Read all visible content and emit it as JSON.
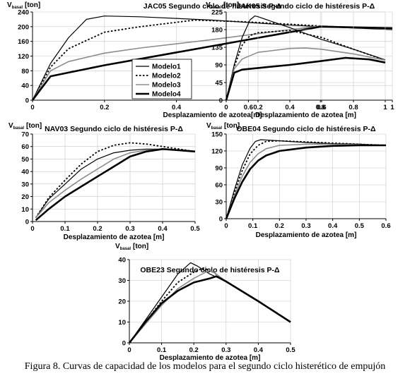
{
  "caption": "Figura 8. Curvas de capacidad de los modelos para el segundo ciclo histerético de empujón",
  "legend": [
    "Modelo1",
    "Modelo2",
    "Modelo3",
    "Modelo4"
  ],
  "chart_data": [
    {
      "type": "line",
      "title": "JAC05 Segundo ciclo de histéresis P-Δ",
      "ylabel_main": "V",
      "ylabel_sub": "basal",
      "ylabel_unit": "[ton]",
      "xlabel": "Desplazamiento de azotea[m]",
      "xlim": [
        0,
        1
      ],
      "ylim": [
        0,
        240
      ],
      "xticks": [
        0,
        0.2,
        0.4,
        0.6,
        0.8,
        1
      ],
      "xtick_labels": [
        "0",
        "0.2",
        "0.4",
        "0.6",
        "0.8",
        "1"
      ],
      "yticks": [
        0,
        40,
        80,
        120,
        160,
        200,
        240
      ],
      "ytick_labels": [
        "0",
        "40",
        "80",
        "120",
        "160",
        "200",
        "240"
      ],
      "legend_position": "bottom-right",
      "series": [
        {
          "name": "Modelo1",
          "x": [
            0,
            0.05,
            0.1,
            0.15,
            0.2,
            0.3,
            0.5,
            0.7,
            0.8,
            1.0
          ],
          "y": [
            0,
            100,
            170,
            220,
            229,
            227,
            218,
            205,
            200,
            192
          ]
        },
        {
          "name": "Modelo2",
          "x": [
            0,
            0.05,
            0.1,
            0.2,
            0.3,
            0.45,
            0.6,
            0.8,
            1.0
          ],
          "y": [
            0,
            90,
            140,
            185,
            200,
            218,
            213,
            202,
            193
          ]
        },
        {
          "name": "Modelo3",
          "x": [
            0,
            0.05,
            0.1,
            0.2,
            0.3,
            0.5,
            0.7,
            0.8,
            1.0
          ],
          "y": [
            0,
            80,
            105,
            128,
            142,
            165,
            190,
            202,
            194
          ]
        },
        {
          "name": "Modelo4",
          "x": [
            0,
            0.05,
            0.1,
            0.2,
            0.4,
            0.6,
            0.8,
            1.0
          ],
          "y": [
            0,
            65,
            75,
            95,
            130,
            165,
            200,
            196
          ]
        }
      ]
    },
    {
      "type": "line",
      "title": "JAK05 Segundo ciclo de histéresis P-Δ",
      "ylabel_main": "V",
      "ylabel_sub": "basal",
      "ylabel_unit": "[ton]",
      "xlabel": "Desplazamiento de azotea [m]",
      "xlim": [
        0,
        1
      ],
      "ylim": [
        0,
        225
      ],
      "xticks": [
        0,
        0.2,
        0.4,
        0.6,
        0.8,
        1
      ],
      "xtick_labels": [
        "0",
        "0.2",
        "0.4",
        "0.6",
        "0.8",
        "1"
      ],
      "yticks": [
        0,
        45,
        90,
        135,
        180,
        225
      ],
      "ytick_labels": [
        "0",
        "45",
        "90",
        "135",
        "180",
        "225"
      ],
      "series": [
        {
          "name": "Modelo1",
          "x": [
            0,
            0.05,
            0.1,
            0.15,
            0.18,
            0.2,
            0.4,
            0.6,
            0.8,
            1.0
          ],
          "y": [
            0,
            90,
            160,
            205,
            215,
            213,
            185,
            155,
            130,
            103
          ]
        },
        {
          "name": "Modelo2",
          "x": [
            0,
            0.05,
            0.1,
            0.15,
            0.2,
            0.4,
            0.6,
            0.8,
            1.0
          ],
          "y": [
            0,
            85,
            140,
            165,
            172,
            178,
            160,
            130,
            102
          ]
        },
        {
          "name": "Modelo3",
          "x": [
            0,
            0.05,
            0.1,
            0.2,
            0.4,
            0.5,
            0.6,
            0.8,
            1.0
          ],
          "y": [
            0,
            80,
            105,
            122,
            132,
            133,
            130,
            118,
            102
          ]
        },
        {
          "name": "Modelo4",
          "x": [
            0,
            0.05,
            0.1,
            0.2,
            0.4,
            0.6,
            0.75,
            0.9,
            1.0
          ],
          "y": [
            0,
            70,
            78,
            82,
            90,
            100,
            108,
            104,
            96
          ]
        }
      ]
    },
    {
      "type": "line",
      "title": "NAV03 Segundo ciclo de histéresis P-Δ",
      "ylabel_main": "V",
      "ylabel_sub": "basal",
      "ylabel_unit": "[ton]",
      "xlabel": "Desplazamiento de azotea [m]",
      "xlim": [
        0,
        0.5
      ],
      "ylim": [
        0,
        70
      ],
      "xticks": [
        0,
        0.1,
        0.2,
        0.3,
        0.4,
        0.5
      ],
      "xtick_labels": [
        "0",
        "0.1",
        "0.2",
        "0.3",
        "0.4",
        "0.5"
      ],
      "yticks": [
        0,
        10,
        20,
        30,
        40,
        50,
        60,
        70
      ],
      "ytick_labels": [
        "0",
        "10",
        "20",
        "30",
        "40",
        "50",
        "60",
        "70"
      ],
      "series": [
        {
          "name": "Modelo1",
          "x": [
            0.01,
            0.05,
            0.1,
            0.15,
            0.2,
            0.25,
            0.3,
            0.35,
            0.4,
            0.45,
            0.5
          ],
          "y": [
            3,
            18,
            30,
            42,
            50,
            55,
            57,
            58,
            58,
            57,
            56
          ]
        },
        {
          "name": "Modelo2",
          "x": [
            0.01,
            0.05,
            0.1,
            0.15,
            0.2,
            0.25,
            0.3,
            0.35,
            0.4,
            0.45,
            0.5
          ],
          "y": [
            3,
            19,
            33,
            46,
            56,
            61,
            63,
            62,
            60,
            58,
            56
          ]
        },
        {
          "name": "Modelo3",
          "x": [
            0.01,
            0.05,
            0.1,
            0.15,
            0.2,
            0.25,
            0.3,
            0.35,
            0.4,
            0.45,
            0.5
          ],
          "y": [
            3,
            15,
            25,
            34,
            42,
            50,
            55,
            57,
            58,
            57,
            56
          ]
        },
        {
          "name": "Modelo4",
          "x": [
            0.01,
            0.05,
            0.1,
            0.15,
            0.2,
            0.25,
            0.3,
            0.35,
            0.4,
            0.45,
            0.5
          ],
          "y": [
            1,
            10,
            20,
            28,
            36,
            44,
            52,
            56,
            58,
            57,
            56
          ]
        }
      ]
    },
    {
      "type": "line",
      "title": "OBE04 Segundo ciclo de histéresis P-Δ",
      "ylabel_main": "V",
      "ylabel_sub": "basal",
      "ylabel_unit": "[ton]",
      "xlabel": "Desplazamiento de azotea [m]",
      "xlim": [
        0,
        0.6
      ],
      "ylim": [
        0,
        150
      ],
      "xticks": [
        0,
        0.1,
        0.2,
        0.3,
        0.4,
        0.5,
        0.6
      ],
      "xtick_labels": [
        "0",
        "0.1",
        "0.2",
        "0.3",
        "0.4",
        "0.5",
        "0.6"
      ],
      "yticks": [
        0,
        30,
        60,
        90,
        120,
        150
      ],
      "ytick_labels": [
        "0",
        "30",
        "60",
        "90",
        "120",
        "150"
      ],
      "series": [
        {
          "name": "Modelo1",
          "x": [
            0,
            0.03,
            0.06,
            0.09,
            0.11,
            0.13,
            0.2,
            0.3,
            0.4,
            0.5,
            0.6
          ],
          "y": [
            0,
            50,
            95,
            125,
            137,
            140,
            138,
            135,
            133,
            132,
            130
          ]
        },
        {
          "name": "Modelo2",
          "x": [
            0,
            0.03,
            0.06,
            0.09,
            0.12,
            0.15,
            0.2,
            0.3,
            0.4,
            0.5,
            0.6
          ],
          "y": [
            0,
            45,
            85,
            115,
            130,
            137,
            138,
            136,
            134,
            132,
            130
          ]
        },
        {
          "name": "Modelo3",
          "x": [
            0,
            0.03,
            0.06,
            0.09,
            0.12,
            0.15,
            0.2,
            0.3,
            0.4,
            0.5,
            0.6
          ],
          "y": [
            0,
            40,
            75,
            100,
            115,
            124,
            130,
            132,
            132,
            131,
            130
          ]
        },
        {
          "name": "Modelo4",
          "x": [
            0,
            0.03,
            0.06,
            0.09,
            0.12,
            0.15,
            0.2,
            0.3,
            0.4,
            0.5,
            0.6
          ],
          "y": [
            0,
            35,
            65,
            88,
            103,
            112,
            120,
            126,
            129,
            130,
            130
          ]
        }
      ]
    },
    {
      "type": "line",
      "title": "OBE23 Segundo ciclo de histéresis P-Δ",
      "ylabel_main": "V",
      "ylabel_sub": "basal",
      "ylabel_unit": "[ton]",
      "xlabel": "Desplazamiento de azotea [m]",
      "xlim": [
        0,
        0.5
      ],
      "ylim": [
        0,
        40
      ],
      "xticks": [
        0,
        0.1,
        0.2,
        0.3,
        0.4,
        0.5
      ],
      "xtick_labels": [
        "0",
        "0.1",
        "0.2",
        "0.3",
        "0.4",
        "0.5"
      ],
      "yticks": [
        0,
        10,
        20,
        30,
        40
      ],
      "ytick_labels": [
        "0",
        "10",
        "20",
        "30",
        "40"
      ],
      "series": [
        {
          "name": "Modelo1",
          "x": [
            0,
            0.05,
            0.1,
            0.15,
            0.19,
            0.21,
            0.25,
            0.3,
            0.4,
            0.5
          ],
          "y": [
            0,
            11,
            22,
            33,
            38.5,
            37,
            33,
            29.5,
            20,
            10
          ]
        },
        {
          "name": "Modelo2",
          "x": [
            0,
            0.05,
            0.1,
            0.15,
            0.2,
            0.23,
            0.26,
            0.3,
            0.4,
            0.5
          ],
          "y": [
            0,
            10,
            20,
            29,
            34,
            36,
            34,
            29.5,
            20,
            10
          ]
        },
        {
          "name": "Modelo3",
          "x": [
            0,
            0.05,
            0.1,
            0.15,
            0.2,
            0.25,
            0.27,
            0.3,
            0.4,
            0.5
          ],
          "y": [
            0,
            9,
            18,
            26,
            31,
            35,
            33,
            29.5,
            20,
            10
          ]
        },
        {
          "name": "Modelo4",
          "x": [
            0,
            0.05,
            0.1,
            0.15,
            0.2,
            0.25,
            0.27,
            0.3,
            0.4,
            0.5
          ],
          "y": [
            0,
            10,
            19,
            25,
            29,
            31,
            32,
            29.5,
            20,
            10
          ]
        }
      ]
    }
  ]
}
